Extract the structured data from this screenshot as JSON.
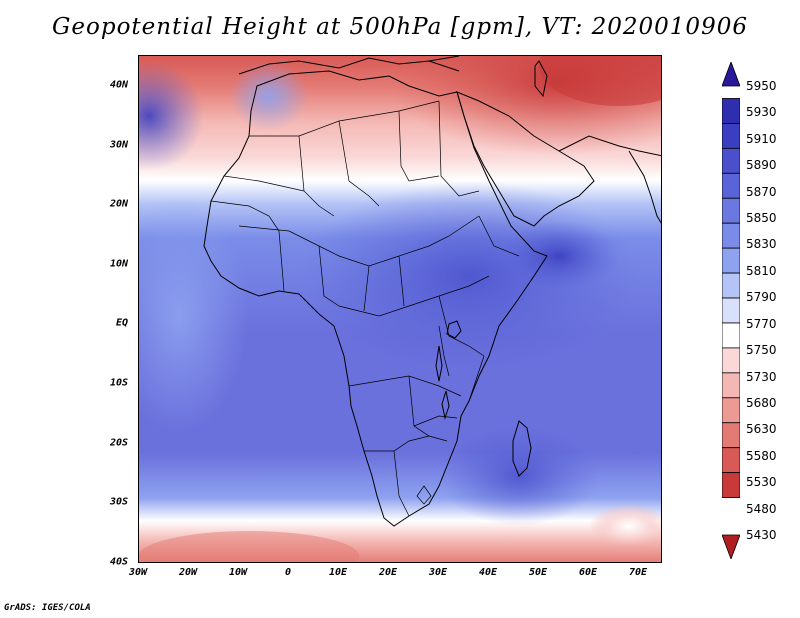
{
  "title": "Geopotential Height at 500hPa [gpm], VT: 2020010906",
  "footer": "GrADS: IGES/COLA",
  "lat_ticks": [
    "40N",
    "30N",
    "20N",
    "10N",
    "EQ",
    "10S",
    "20S",
    "30S",
    "40S"
  ],
  "lon_ticks": [
    "30W",
    "20W",
    "10W",
    "0",
    "10E",
    "20E",
    "30E",
    "40E",
    "50E",
    "60E",
    "70E"
  ],
  "colorbar": {
    "levels": [
      "5950",
      "5930",
      "5910",
      "5890",
      "5870",
      "5850",
      "5830",
      "5810",
      "5790",
      "5770",
      "5750",
      "5730",
      "5680",
      "5630",
      "5580",
      "5530",
      "5480",
      "5430"
    ],
    "colors": [
      "#28189a",
      "#2e2eae",
      "#3a3ec0",
      "#4a50cc",
      "#5a64d8",
      "#6a78e0",
      "#7a8ce8",
      "#8ea2f0",
      "#b4c4f6",
      "#d8e0fa",
      "#ffffff",
      "#fad8d8",
      "#f4b8b4",
      "#ee9a94",
      "#e47a74",
      "#d85a56",
      "#c83a3a",
      "#b01e22"
    ]
  },
  "colors": {
    "map_base": "#6a70dc",
    "tropics_light": "#7a8ce8",
    "tropics_dark": "#5056cc",
    "north_red": "#f4b8b4",
    "north_deep": "#d85a56",
    "south_band": "#f4b8b4"
  }
}
